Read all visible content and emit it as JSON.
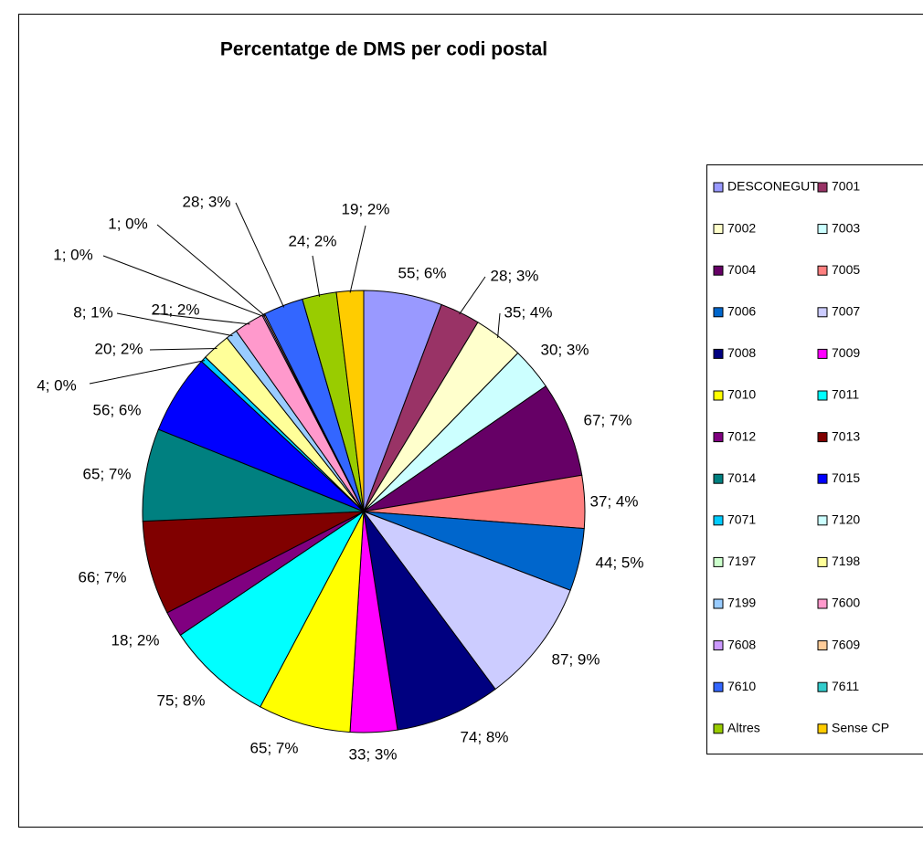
{
  "chart_data": {
    "type": "pie",
    "title": "Percentatge de DMS per codi postal",
    "categories": [
      "DESCONEGUT",
      "7001",
      "7002",
      "7003",
      "7004",
      "7005",
      "7006",
      "7007",
      "7008",
      "7009",
      "7010",
      "7011",
      "7012",
      "7013",
      "7014",
      "7015",
      "7071",
      "7120",
      "7197",
      "7198",
      "7199",
      "7600",
      "7608",
      "7609",
      "7610",
      "7611",
      "Altres",
      "Sense CP"
    ],
    "values": [
      55,
      28,
      35,
      30,
      67,
      37,
      44,
      87,
      74,
      33,
      65,
      75,
      18,
      66,
      65,
      56,
      4,
      0,
      0,
      20,
      8,
      21,
      1,
      1,
      28,
      0,
      24,
      19
    ],
    "value_labels": [
      "55; 6%",
      "28; 3%",
      "35; 4%",
      "30; 3%",
      "67; 7%",
      "37; 4%",
      "44; 5%",
      "87; 9%",
      "74; 8%",
      "33; 3%",
      "65; 7%",
      "75; 8%",
      "18; 2%",
      "66; 7%",
      "65; 7%",
      "56; 6%",
      "4; 0%",
      null,
      null,
      "20; 2%",
      "8; 1%",
      "21; 2%",
      "1; 0%",
      "1; 0%",
      "28; 3%",
      null,
      "24; 2%",
      "19; 2%"
    ],
    "colors": [
      "#9999ff",
      "#993366",
      "#ffffcc",
      "#ccffff",
      "#660066",
      "#ff8080",
      "#0066cc",
      "#ccccff",
      "#000080",
      "#ff00ff",
      "#ffff00",
      "#00ffff",
      "#800080",
      "#800000",
      "#008080",
      "#0000ff",
      "#00ccff",
      "#ccffff",
      "#ccffcc",
      "#ffff99",
      "#99ccff",
      "#ff99cc",
      "#cc99ff",
      "#ffcc99",
      "#3366ff",
      "#33cccc",
      "#99cc00",
      "#ffcc00"
    ],
    "legend": "right"
  }
}
